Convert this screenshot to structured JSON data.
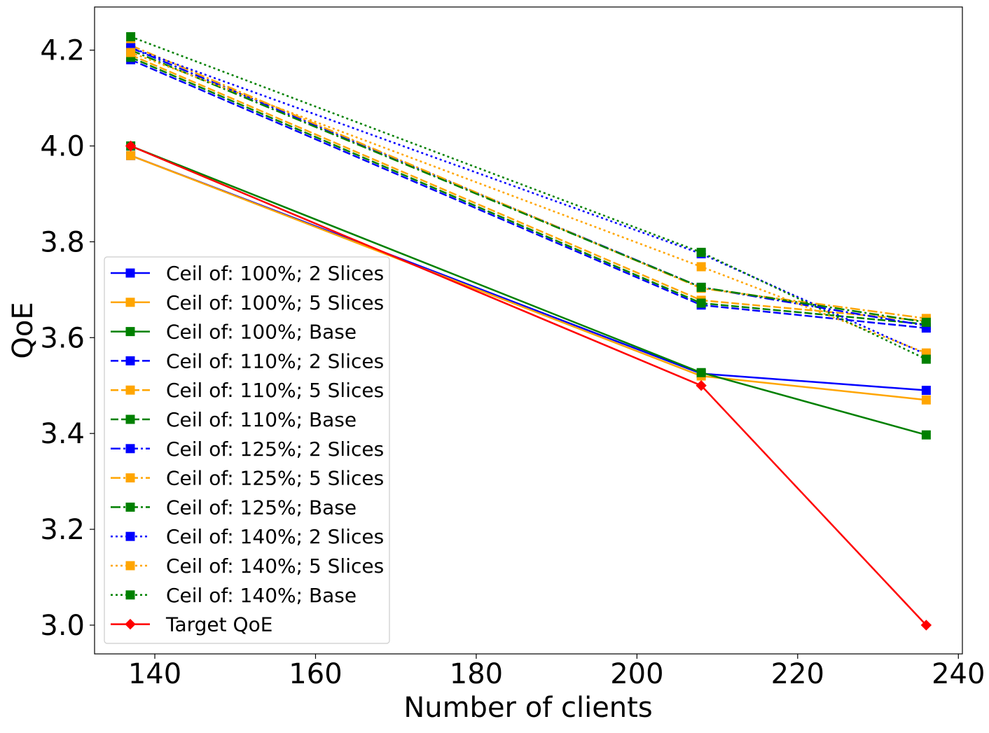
{
  "chart_data": {
    "type": "line",
    "title": "",
    "xlabel": "Number of clients",
    "ylabel": "QoE",
    "xlim": [
      132.5,
      240.5
    ],
    "ylim": [
      2.94,
      4.29
    ],
    "xticks": [
      140,
      160,
      180,
      200,
      220,
      240
    ],
    "yticks": [
      3.0,
      3.2,
      3.4,
      3.6,
      3.8,
      4.0,
      4.2
    ],
    "xtick_labels": [
      "140",
      "160",
      "180",
      "200",
      "220",
      "240"
    ],
    "ytick_labels": [
      "3.0",
      "3.2",
      "3.4",
      "3.6",
      "3.8",
      "4.0",
      "4.2"
    ],
    "grid": false,
    "legend_position": "lower-left",
    "x": [
      137,
      208,
      236
    ],
    "series": [
      {
        "name": "Ceil of: 100%; 2 Slices",
        "color": "#0000ff",
        "linestyle": "solid",
        "marker": "square",
        "values": [
          3.98,
          3.525,
          3.49
        ]
      },
      {
        "name": "Ceil of: 100%; 5 Slices",
        "color": "#ffa500",
        "linestyle": "solid",
        "marker": "square",
        "values": [
          3.98,
          3.52,
          3.47
        ]
      },
      {
        "name": "Ceil of: 100%; Base",
        "color": "#008000",
        "linestyle": "solid",
        "marker": "square",
        "values": [
          4.0,
          3.527,
          3.397
        ]
      },
      {
        "name": "Ceil of: 110%; 2 Slices",
        "color": "#0000ff",
        "linestyle": "dashed",
        "marker": "square",
        "values": [
          4.18,
          3.668,
          3.62
        ]
      },
      {
        "name": "Ceil of: 110%; 5 Slices",
        "color": "#ffa500",
        "linestyle": "dashed",
        "marker": "square",
        "values": [
          4.19,
          3.678,
          3.635
        ]
      },
      {
        "name": "Ceil of: 110%; Base",
        "color": "#008000",
        "linestyle": "dashed",
        "marker": "square",
        "values": [
          4.185,
          3.672,
          3.628
        ]
      },
      {
        "name": "Ceil of: 125%; 2 Slices",
        "color": "#0000ff",
        "linestyle": "dashdot",
        "marker": "square",
        "values": [
          4.205,
          3.705,
          3.625
        ]
      },
      {
        "name": "Ceil of: 125%; 5 Slices",
        "color": "#ffa500",
        "linestyle": "dashdot",
        "marker": "square",
        "values": [
          4.21,
          3.703,
          3.64
        ]
      },
      {
        "name": "Ceil of: 125%; Base",
        "color": "#008000",
        "linestyle": "dashdot",
        "marker": "square",
        "values": [
          4.2,
          3.705,
          3.632
        ]
      },
      {
        "name": "Ceil of: 140%; 2 Slices",
        "color": "#0000ff",
        "linestyle": "dotted",
        "marker": "square",
        "values": [
          4.205,
          3.775,
          3.565
        ]
      },
      {
        "name": "Ceil of: 140%; 5 Slices",
        "color": "#ffa500",
        "linestyle": "dotted",
        "marker": "square",
        "values": [
          4.195,
          3.748,
          3.568
        ]
      },
      {
        "name": "Ceil of: 140%; Base",
        "color": "#008000",
        "linestyle": "dotted",
        "marker": "square",
        "values": [
          4.228,
          3.778,
          3.555
        ]
      },
      {
        "name": "Target QoE",
        "color": "#ff0000",
        "linestyle": "solid",
        "marker": "diamond",
        "values": [
          4.0,
          3.5,
          3.0
        ]
      }
    ]
  }
}
